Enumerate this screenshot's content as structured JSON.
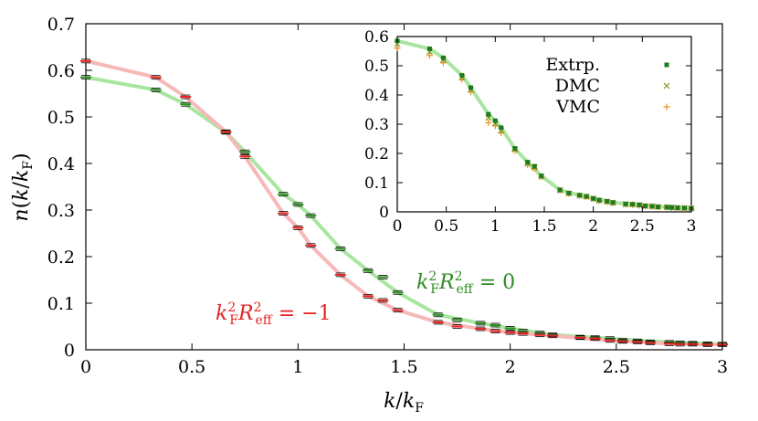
{
  "chart_data": [
    {
      "id": "main",
      "type": "line",
      "xlabel": "k/k_F",
      "ylabel": "n(k/k_F)",
      "xlim": [
        0,
        3
      ],
      "ylim": [
        0,
        0.7
      ],
      "xticks": [
        "0",
        "0.5",
        "1",
        "1.5",
        "2",
        "2.5",
        "3"
      ],
      "yticks": [
        "0",
        "0.1",
        "0.2",
        "0.3",
        "0.4",
        "0.5",
        "0.6",
        "0.7"
      ],
      "grid": false,
      "annotations": [
        {
          "text": "k_F^2 R_eff^2 = 0",
          "color": "#2e8b22"
        },
        {
          "text": "k_F^2 R_eff^2 = −1",
          "color": "#e62020"
        }
      ],
      "series": [
        {
          "color": "#2e8b22",
          "fit_color": "#a8e6a0",
          "x": [
            0,
            0.33,
            0.47,
            0.66,
            0.75,
            0.93,
            1.0,
            1.06,
            1.2,
            1.33,
            1.4,
            1.47,
            1.66,
            1.75,
            1.86,
            1.93,
            2.0,
            2.06,
            2.14,
            2.2,
            2.33,
            2.4,
            2.47,
            2.53,
            2.6,
            2.66,
            2.75,
            2.8,
            2.86,
            2.93,
            3.0
          ],
          "y": [
            0.585,
            0.558,
            0.527,
            0.467,
            0.425,
            0.334,
            0.312,
            0.288,
            0.217,
            0.17,
            0.156,
            0.123,
            0.075,
            0.064,
            0.057,
            0.053,
            0.046,
            0.04,
            0.036,
            0.032,
            0.027,
            0.026,
            0.024,
            0.02,
            0.019,
            0.017,
            0.016,
            0.015,
            0.014,
            0.013,
            0.012
          ],
          "fit_x": [
            0,
            0.33,
            0.47,
            0.66,
            0.75,
            0.93,
            1.0,
            1.06,
            1.2,
            1.33,
            1.47,
            1.66,
            1.86,
            2.0,
            2.2,
            2.47,
            2.75,
            3.0
          ],
          "fit_y": [
            0.585,
            0.558,
            0.527,
            0.467,
            0.425,
            0.334,
            0.312,
            0.288,
            0.217,
            0.17,
            0.123,
            0.075,
            0.057,
            0.046,
            0.032,
            0.024,
            0.016,
            0.012
          ]
        },
        {
          "color": "#e62020",
          "fit_color": "#f7b8b8",
          "x": [
            0,
            0.33,
            0.47,
            0.66,
            0.75,
            0.93,
            1.0,
            1.06,
            1.2,
            1.33,
            1.4,
            1.47,
            1.66,
            1.75,
            1.86,
            1.93,
            2.0,
            2.06,
            2.14,
            2.2,
            2.33,
            2.4,
            2.47,
            2.53,
            2.6,
            2.66,
            2.75,
            2.8,
            2.86,
            2.93,
            3.0
          ],
          "y": [
            0.62,
            0.585,
            0.543,
            0.468,
            0.415,
            0.293,
            0.262,
            0.224,
            0.161,
            0.115,
            0.106,
            0.085,
            0.059,
            0.05,
            0.045,
            0.04,
            0.037,
            0.035,
            0.032,
            0.03,
            0.026,
            0.024,
            0.02,
            0.018,
            0.017,
            0.015,
            0.013,
            0.012,
            0.012,
            0.011,
            0.011
          ],
          "fit_x": [
            0,
            0.33,
            0.47,
            0.66,
            0.75,
            0.93,
            1.0,
            1.06,
            1.2,
            1.33,
            1.47,
            1.66,
            1.86,
            2.0,
            2.2,
            2.47,
            2.75,
            3.0
          ],
          "fit_y": [
            0.62,
            0.585,
            0.543,
            0.468,
            0.415,
            0.293,
            0.262,
            0.224,
            0.161,
            0.115,
            0.085,
            0.059,
            0.045,
            0.037,
            0.03,
            0.02,
            0.013,
            0.011
          ]
        }
      ]
    },
    {
      "id": "inset",
      "type": "scatter",
      "xlim": [
        0,
        3
      ],
      "ylim": [
        0,
        0.6
      ],
      "xticks": [
        "0",
        "0.5",
        "1",
        "1.5",
        "2",
        "2.5",
        "3"
      ],
      "yticks": [
        "0",
        "0.1",
        "0.2",
        "0.3",
        "0.4",
        "0.5",
        "0.6"
      ],
      "grid": false,
      "legend_position": "top-right",
      "fit_color": "#a8e6a0",
      "fit_x": [
        0,
        0.33,
        0.47,
        0.66,
        0.75,
        0.93,
        1.0,
        1.06,
        1.2,
        1.33,
        1.47,
        1.66,
        1.86,
        2.0,
        2.2,
        2.47,
        2.75,
        3.0
      ],
      "fit_y": [
        0.585,
        0.558,
        0.527,
        0.467,
        0.425,
        0.334,
        0.312,
        0.288,
        0.217,
        0.17,
        0.123,
        0.075,
        0.057,
        0.046,
        0.032,
        0.024,
        0.016,
        0.012
      ],
      "series": [
        {
          "name": "Extrp.",
          "color": "#1e7a1e",
          "marker": "square",
          "x": [
            0,
            0.33,
            0.47,
            0.66,
            0.75,
            0.93,
            1.0,
            1.06,
            1.2,
            1.33,
            1.4,
            1.47,
            1.66,
            1.75,
            1.86,
            1.93,
            2.0,
            2.06,
            2.14,
            2.2,
            2.33,
            2.4,
            2.47,
            2.53,
            2.6,
            2.66,
            2.75,
            2.8,
            2.86,
            2.93,
            3.0
          ],
          "y": [
            0.585,
            0.558,
            0.527,
            0.467,
            0.425,
            0.334,
            0.312,
            0.288,
            0.217,
            0.17,
            0.156,
            0.123,
            0.075,
            0.064,
            0.057,
            0.053,
            0.046,
            0.04,
            0.036,
            0.032,
            0.027,
            0.026,
            0.024,
            0.02,
            0.019,
            0.017,
            0.016,
            0.015,
            0.014,
            0.013,
            0.012
          ]
        },
        {
          "name": "DMC",
          "color": "#7a9a1a",
          "marker": "cross",
          "x": [
            0,
            0.33,
            0.47,
            0.66,
            0.75,
            0.93,
            1.0,
            1.06,
            1.2,
            1.33,
            1.4,
            1.47,
            1.66,
            1.75,
            1.86,
            1.93,
            2.0,
            2.06,
            2.14,
            2.2,
            2.33,
            2.4,
            2.47,
            2.53,
            2.6,
            2.66,
            2.75,
            2.8,
            2.86,
            2.93,
            3.0
          ],
          "y": [
            0.575,
            0.548,
            0.52,
            0.46,
            0.418,
            0.322,
            0.303,
            0.279,
            0.213,
            0.165,
            0.152,
            0.121,
            0.074,
            0.063,
            0.056,
            0.052,
            0.045,
            0.039,
            0.035,
            0.031,
            0.026,
            0.025,
            0.023,
            0.02,
            0.019,
            0.017,
            0.016,
            0.015,
            0.014,
            0.013,
            0.012
          ]
        },
        {
          "name": "VMC",
          "color": "#f08c1e",
          "marker": "plus",
          "x": [
            0,
            0.33,
            0.47,
            0.66,
            0.75,
            0.93,
            1.0,
            1.06,
            1.2,
            1.33,
            1.4,
            1.47,
            1.66,
            1.75,
            1.86,
            1.93,
            2.0,
            2.06,
            2.14,
            2.2,
            2.33,
            2.4,
            2.47,
            2.53,
            2.6,
            2.66,
            2.75,
            2.8,
            2.86,
            2.93,
            3.0
          ],
          "y": [
            0.56,
            0.535,
            0.51,
            0.452,
            0.41,
            0.305,
            0.294,
            0.27,
            0.209,
            0.16,
            0.148,
            0.119,
            0.073,
            0.062,
            0.055,
            0.051,
            0.044,
            0.038,
            0.034,
            0.03,
            0.025,
            0.024,
            0.022,
            0.019,
            0.018,
            0.016,
            0.015,
            0.014,
            0.013,
            0.012,
            0.011
          ]
        }
      ]
    }
  ]
}
